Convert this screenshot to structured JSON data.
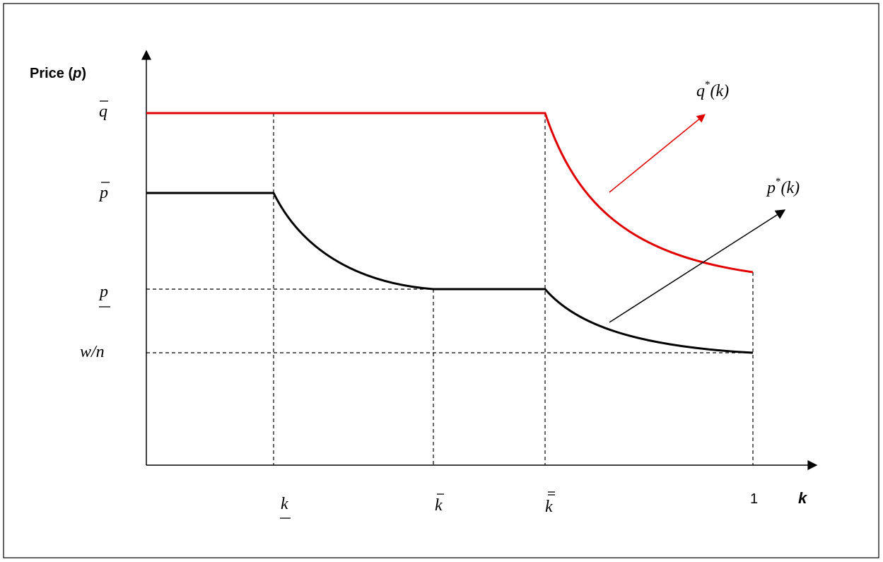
{
  "y_axis": {
    "label_parts": [
      "Price (",
      "p",
      ")"
    ]
  },
  "x_axis": {
    "label": "k"
  },
  "y_ticks": {
    "q_bar": "q",
    "p_bar": "p",
    "p_under": "p",
    "w_over_n": "w/n"
  },
  "x_ticks": {
    "k_under": "k",
    "k_bar": "k",
    "k_double_bar": "k",
    "one": "1"
  },
  "curves": {
    "q_star": {
      "letter": "q",
      "superscript": "*",
      "argument": "(k)"
    },
    "p_star": {
      "letter": "p",
      "superscript": "*",
      "argument": "(k)"
    }
  }
}
